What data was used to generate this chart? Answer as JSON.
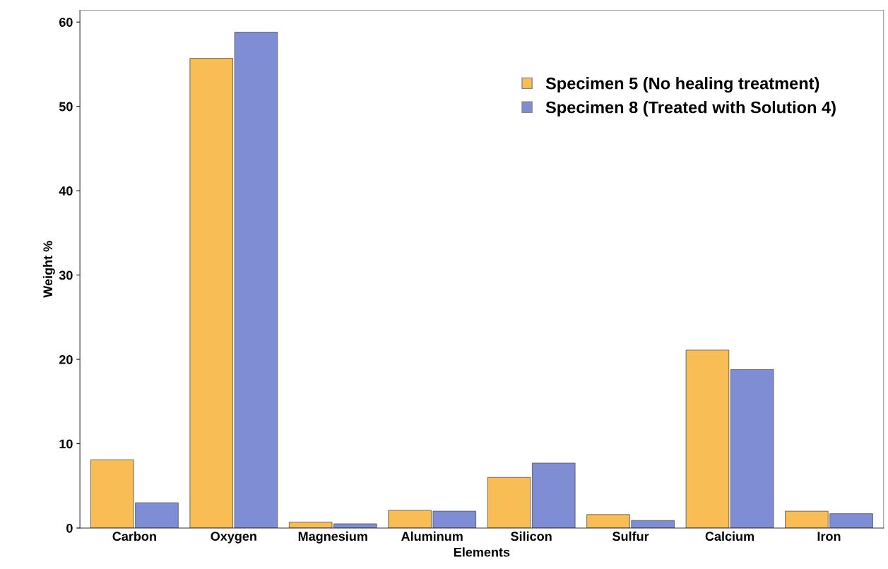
{
  "chart_data": {
    "type": "bar",
    "xlabel": "Elements",
    "ylabel": "Weight %",
    "categories": [
      "Carbon",
      "Oxygen",
      "Magnesium",
      "Aluminum",
      "Silicon",
      "Sulfur",
      "Calcium",
      "Iron"
    ],
    "series": [
      {
        "name": "Specimen 5 (No healing treatment)",
        "color": "#f9bd55",
        "values": [
          8.1,
          55.7,
          0.7,
          2.1,
          6.0,
          1.6,
          21.1,
          2.0
        ]
      },
      {
        "name": "Specimen 8 (Treated with Solution 4)",
        "color": "#7f8dd5",
        "values": [
          3.0,
          58.8,
          0.5,
          2.0,
          7.7,
          0.9,
          18.8,
          1.7
        ]
      }
    ],
    "ylim": [
      0,
      61.4
    ],
    "yticks": [
      0,
      10,
      20,
      30,
      40,
      50,
      60
    ],
    "grid": false,
    "legend": "top right"
  }
}
